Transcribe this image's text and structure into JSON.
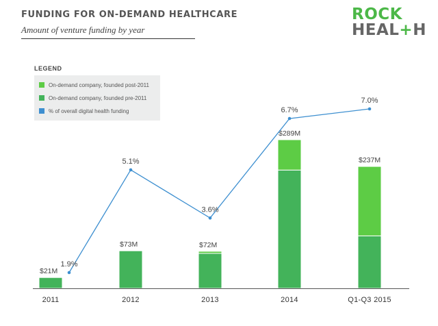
{
  "header": {
    "title": "FUNDING FOR ON-DEMAND HEALTHCARE",
    "subtitle": "Amount of venture funding by year"
  },
  "logo": {
    "line1": "ROCK",
    "line2_a": "HEAL",
    "line2_plus": "+",
    "line2_b": "H"
  },
  "legend": {
    "title": "LEGEND",
    "items": [
      {
        "label": "On-demand company, founded post-2011",
        "color": "#5dcc45"
      },
      {
        "label": "On-demand company, founded pre-2011",
        "color": "#43b35a"
      },
      {
        "label": "% of overall digital health funding",
        "color": "#3d8fd0"
      }
    ]
  },
  "chart_data": {
    "type": "bar",
    "title": "FUNDING FOR ON-DEMAND HEALTHCARE",
    "subtitle": "Amount of venture funding by year",
    "categories": [
      "2011",
      "2012",
      "2013",
      "2014",
      "Q1-Q3 2015"
    ],
    "ylim": [
      0,
      300
    ],
    "series": [
      {
        "name": "On-demand company, founded pre-2011",
        "values": [
          21,
          73,
          68,
          230,
          102
        ],
        "color": "#43b35a"
      },
      {
        "name": "On-demand company, founded post-2011",
        "values": [
          0,
          0,
          4,
          59,
          135
        ],
        "color": "#5dcc45"
      }
    ],
    "totals": [
      21,
      73,
      72,
      289,
      237
    ],
    "total_labels": [
      "$21M",
      "$73M",
      "$72M",
      "$289M",
      "$237M"
    ],
    "line": {
      "name": "% of overall digital health funding",
      "values": [
        1.9,
        5.1,
        3.6,
        6.7,
        7.0
      ],
      "labels": [
        "1.9%",
        "5.1%",
        "3.6%",
        "6.7%",
        "7.0%"
      ],
      "color": "#3d8fd0",
      "ylim": [
        0,
        8
      ]
    }
  }
}
